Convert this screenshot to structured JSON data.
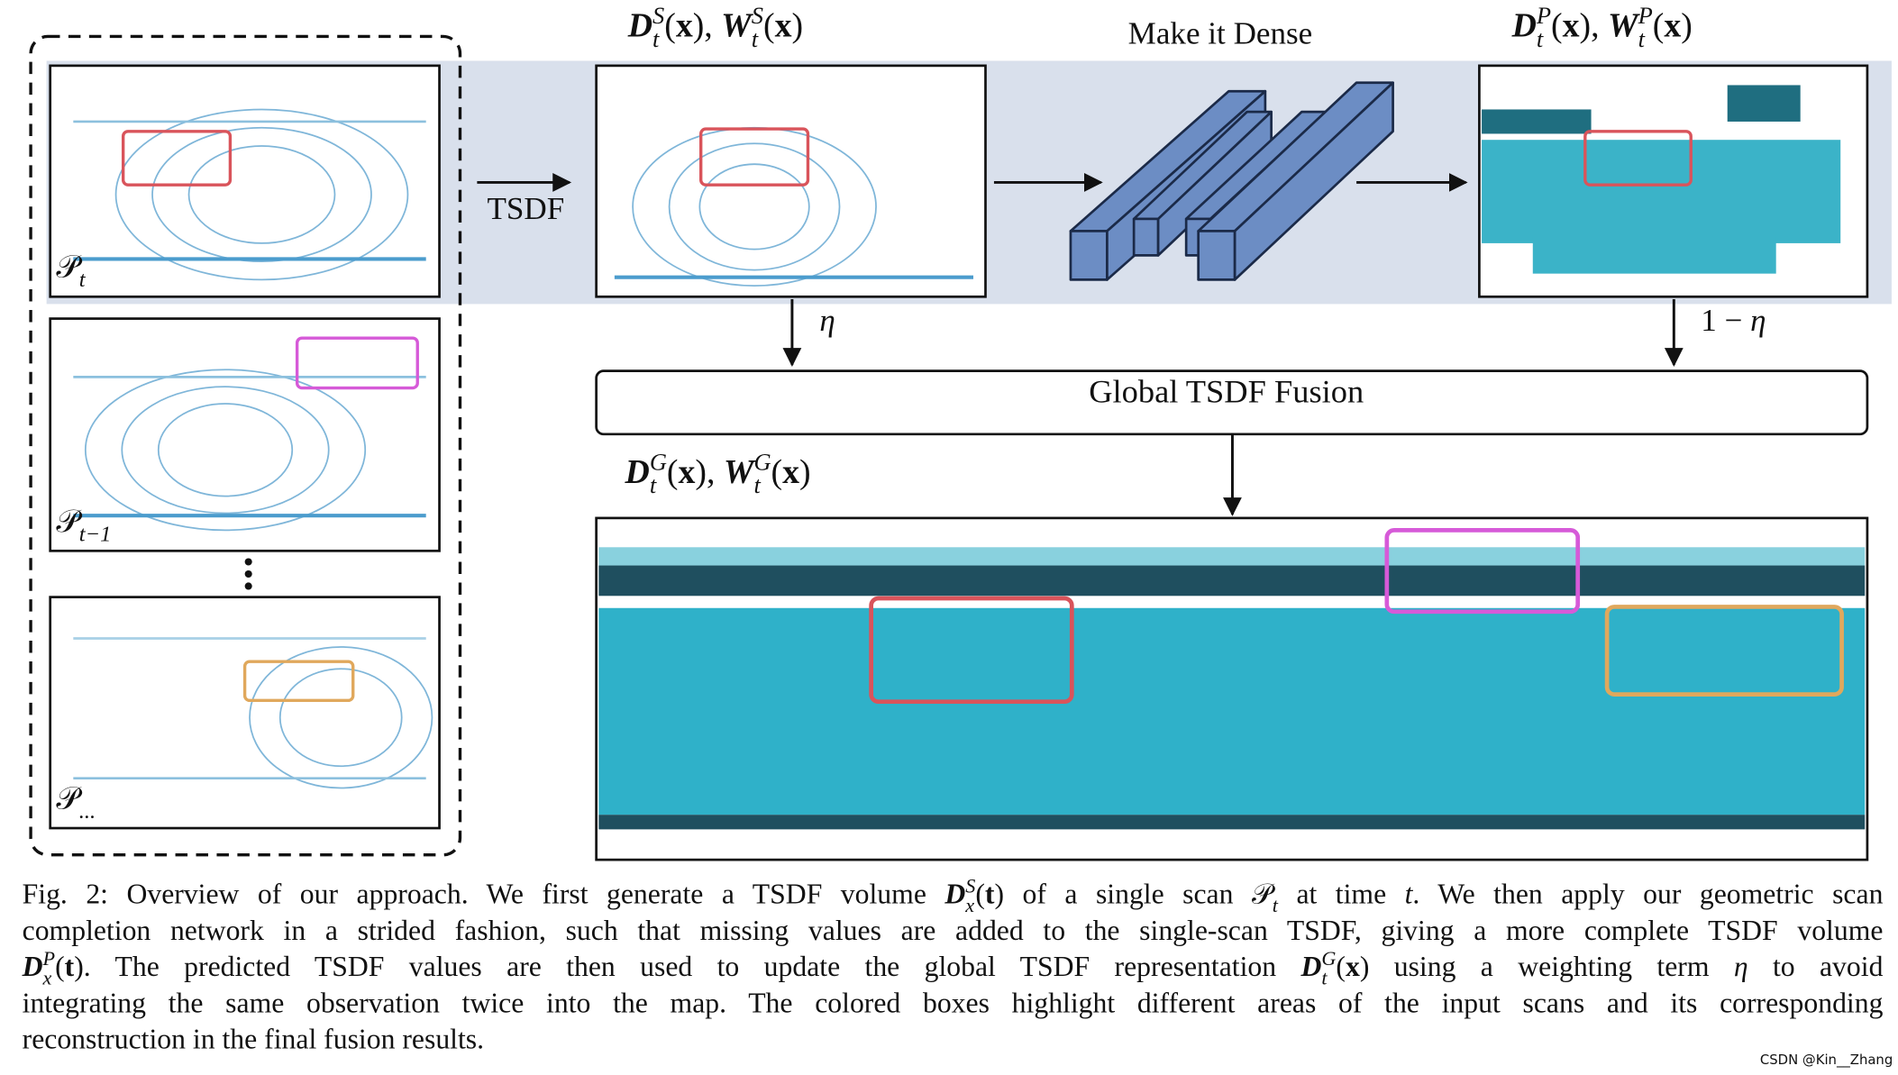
{
  "figure": {
    "labels": {
      "scan_t": [
        {
          "text": "𝒫"
        },
        {
          "sub": "t"
        }
      ],
      "scan_t1": [
        {
          "text": "𝒫"
        },
        {
          "sub": "t−1"
        }
      ],
      "scan_n": [
        {
          "text": "𝒫"
        },
        {
          "sub": "..."
        }
      ],
      "single": [
        {
          "text": "D",
          "style": "bi"
        },
        {
          "sup": "S",
          "sub": "t"
        },
        {
          "text": "("
        },
        {
          "text": "x",
          "style": "b"
        },
        {
          "text": "), "
        },
        {
          "text": "W",
          "style": "bi"
        },
        {
          "sup": "S",
          "sub": "t"
        },
        {
          "text": "("
        },
        {
          "text": "x",
          "style": "b"
        },
        {
          "text": ")"
        }
      ],
      "predicted": [
        {
          "text": "D",
          "style": "bi"
        },
        {
          "sup": "P",
          "sub": "t"
        },
        {
          "text": "("
        },
        {
          "text": "x",
          "style": "b"
        },
        {
          "text": "), "
        },
        {
          "text": "W",
          "style": "bi"
        },
        {
          "sup": "P",
          "sub": "t"
        },
        {
          "text": "("
        },
        {
          "text": "x",
          "style": "b"
        },
        {
          "text": ")"
        }
      ],
      "global": [
        {
          "text": "D",
          "style": "bi"
        },
        {
          "sup": "G",
          "sub": "t"
        },
        {
          "text": "("
        },
        {
          "text": "x",
          "style": "b"
        },
        {
          "text": "), "
        },
        {
          "text": "W",
          "style": "bi"
        },
        {
          "sup": "G",
          "sub": "t"
        },
        {
          "text": "("
        },
        {
          "text": "x",
          "style": "b"
        },
        {
          "text": ")"
        }
      ],
      "tsdf": [
        {
          "text": "TSDF"
        }
      ],
      "network": [
        {
          "text": "Make it Dense"
        }
      ],
      "eta": [
        {
          "text": "η",
          "style": "i"
        }
      ],
      "one_minus_eta": [
        {
          "text": "1 − "
        },
        {
          "text": "η",
          "style": "i"
        }
      ],
      "fusion": [
        {
          "text": "Global TSDF Fusion"
        }
      ]
    },
    "caption": [
      [
        {
          "text": "Fig. 2: Overview of our approach. We first generate a TSDF volume "
        },
        {
          "text": "D",
          "style": "bi"
        },
        {
          "sup": "S",
          "sub": "x"
        },
        {
          "text": "("
        },
        {
          "text": "t",
          "style": "b"
        },
        {
          "text": ") of a single scan "
        },
        {
          "text": "𝒫"
        },
        {
          "sub": "t"
        },
        {
          "text": " at time "
        },
        {
          "text": "t",
          "style": "i"
        },
        {
          "text": ". We then apply our geometric scan"
        }
      ],
      [
        {
          "text": "completion network in a strided fashion, such that missing values are added to the single-scan TSDF, giving a more complete TSDF volume"
        }
      ],
      [
        {
          "text": "D",
          "style": "bi"
        },
        {
          "sup": "P",
          "sub": "x"
        },
        {
          "text": "("
        },
        {
          "text": "t",
          "style": "b"
        },
        {
          "text": "). The predicted TSDF values are then used to update the global TSDF representation "
        },
        {
          "text": "D",
          "style": "bi"
        },
        {
          "sup": "G",
          "sub": "t"
        },
        {
          "text": "("
        },
        {
          "text": "x",
          "style": "b"
        },
        {
          "text": ") using a weighting term "
        },
        {
          "text": "η",
          "style": "i"
        },
        {
          "text": " to avoid"
        }
      ],
      [
        {
          "text": "integrating the same observation twice into the map. The colored boxes highlight different areas of the input scans and its corresponding"
        }
      ],
      [
        {
          "text": "reconstruction in the final fusion results."
        }
      ]
    ],
    "watermark": "CSDN @Kin__Zhang"
  }
}
